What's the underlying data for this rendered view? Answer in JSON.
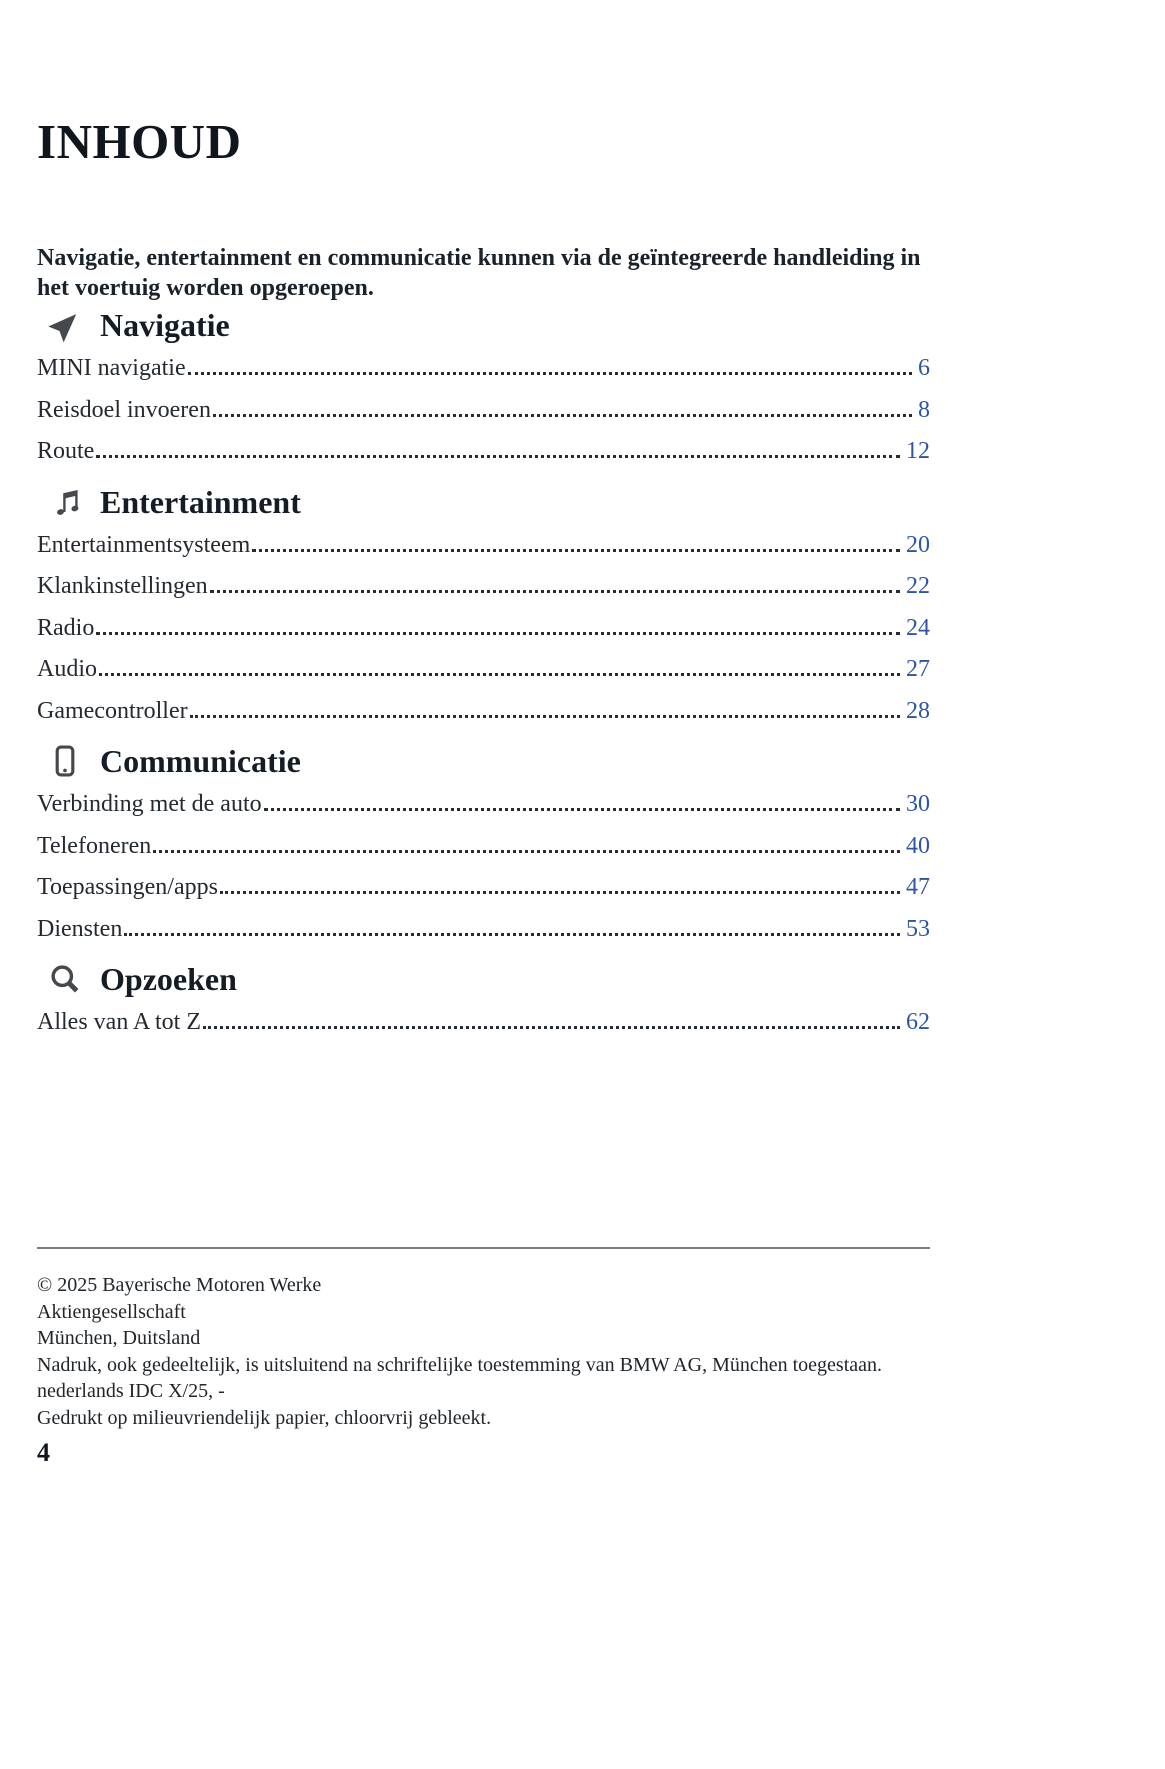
{
  "page": {
    "title": "INHOUD",
    "intro": "Navigatie, entertainment en communicatie kunnen via de geïntegreerde handleiding in het voertuig worden opgeroepen.",
    "page_number": "4"
  },
  "sections": [
    {
      "icon": "navigation-arrow-icon",
      "title": "Navigatie",
      "entries": [
        {
          "label": "MINI navigatie",
          "page": "6"
        },
        {
          "label": "Reisdoel invoeren",
          "page": "8"
        },
        {
          "label": "Route",
          "page": "12"
        }
      ]
    },
    {
      "icon": "music-note-icon",
      "title": "Entertainment",
      "entries": [
        {
          "label": "Entertainmentsysteem",
          "page": "20"
        },
        {
          "label": "Klankinstellingen",
          "page": "22"
        },
        {
          "label": "Radio",
          "page": "24"
        },
        {
          "label": "Audio",
          "page": "27"
        },
        {
          "label": "Gamecontroller",
          "page": "28"
        }
      ]
    },
    {
      "icon": "smartphone-icon",
      "title": "Communicatie",
      "entries": [
        {
          "label": "Verbinding met de auto",
          "page": "30"
        },
        {
          "label": "Telefoneren",
          "page": "40"
        },
        {
          "label": "Toepassingen/apps",
          "page": "47"
        },
        {
          "label": "Diensten",
          "page": "53"
        }
      ]
    },
    {
      "icon": "search-icon",
      "title": "Opzoeken",
      "entries": [
        {
          "label": "Alles van A tot Z",
          "page": "62"
        }
      ]
    }
  ],
  "footer": {
    "lines": [
      "© 2025 Bayerische Motoren Werke",
      "Aktiengesellschaft",
      "München, Duitsland",
      "Nadruk, ook gedeeltelijk, is uitsluitend na schriftelijke toestemming van BMW AG, München toegestaan.",
      "nederlands IDC X/25, -",
      "Gedrukt op milieuvriendelijk papier, chloorvrij gebleekt."
    ]
  },
  "colors": {
    "heading_text": "#141c25",
    "body_text": "#232a31",
    "page_number_blue": "#2e56a0",
    "icon_gray": "#45494e",
    "divider_gray": "#7d7d7d"
  }
}
